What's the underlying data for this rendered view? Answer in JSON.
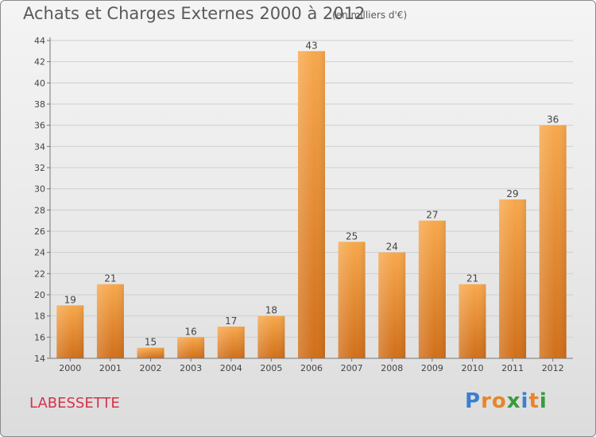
{
  "header": {
    "title": "Achats et Charges Externes 2000 à 2012",
    "subtitle": "(en milliers d'€)"
  },
  "commune": "LABESSETTE",
  "brand": {
    "logo_text": "Proxiti",
    "letters": [
      {
        "ch": "P",
        "color": "#3a7fd0"
      },
      {
        "ch": "r",
        "color": "#e5862a"
      },
      {
        "ch": "o",
        "color": "#e5862a"
      },
      {
        "ch": "x",
        "color": "#3a9a3a"
      },
      {
        "ch": "i",
        "color": "#3a7fd0"
      },
      {
        "ch": "t",
        "color": "#e5862a"
      },
      {
        "ch": "i",
        "color": "#3a9a3a"
      }
    ]
  },
  "colors": {
    "bar_light": "#f7a84c",
    "bar_dark": "#d06f1a",
    "axis": "#777777",
    "grid": "#cfcfcf",
    "text": "#444444"
  },
  "chart_data": {
    "type": "bar",
    "categories": [
      "2000",
      "2001",
      "2002",
      "2003",
      "2004",
      "2005",
      "2006",
      "2007",
      "2008",
      "2009",
      "2010",
      "2011",
      "2012"
    ],
    "values": [
      19,
      21,
      15,
      16,
      17,
      18,
      43,
      25,
      24,
      27,
      21,
      29,
      36
    ],
    "title": "Achats et Charges Externes 2000 à 2012",
    "xlabel": "",
    "ylabel": "",
    "ylim": [
      14,
      44
    ],
    "yticks": [
      14,
      16,
      18,
      20,
      22,
      24,
      26,
      28,
      30,
      32,
      34,
      36,
      38,
      40,
      42,
      44
    ],
    "grid": true,
    "data_labels": true
  }
}
